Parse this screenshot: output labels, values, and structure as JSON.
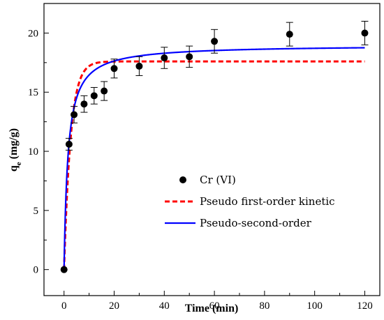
{
  "chart_data": {
    "type": "scatter",
    "xlabel": "Time (min)",
    "ylabel": "q",
    "ylabel_sub": "e",
    "ylabel_unit": "(mg/g)",
    "xlim": [
      -8,
      126
    ],
    "ylim": [
      -2.2,
      22.5
    ],
    "x_ticks": [
      0,
      20,
      40,
      60,
      80,
      100,
      120
    ],
    "y_ticks": [
      0,
      5,
      10,
      15,
      20
    ],
    "grid": false,
    "legend_position": "center-right",
    "series": [
      {
        "name": "Cr (VI)",
        "kind": "points",
        "marker": "circle",
        "color": "#000000",
        "x": [
          0,
          2,
          4,
          8,
          12,
          16,
          20,
          30,
          40,
          50,
          60,
          90,
          120
        ],
        "y": [
          0,
          10.6,
          13.1,
          14.0,
          14.7,
          15.1,
          17.0,
          17.2,
          17.9,
          18.0,
          19.3,
          19.9,
          20.0
        ],
        "error": [
          0.0,
          0.5,
          0.7,
          0.7,
          0.7,
          0.8,
          0.8,
          0.8,
          0.9,
          0.9,
          1.0,
          1.0,
          1.0
        ]
      },
      {
        "name": "Pseudo first-order kinetic",
        "kind": "line",
        "style": "dashed",
        "color": "#ff0000",
        "qe": 17.6,
        "k": 0.38
      },
      {
        "name": "Pseudo-second-order",
        "kind": "line",
        "style": "solid",
        "color": "#0000ff",
        "qe": 19.0,
        "k": 0.034
      }
    ]
  }
}
